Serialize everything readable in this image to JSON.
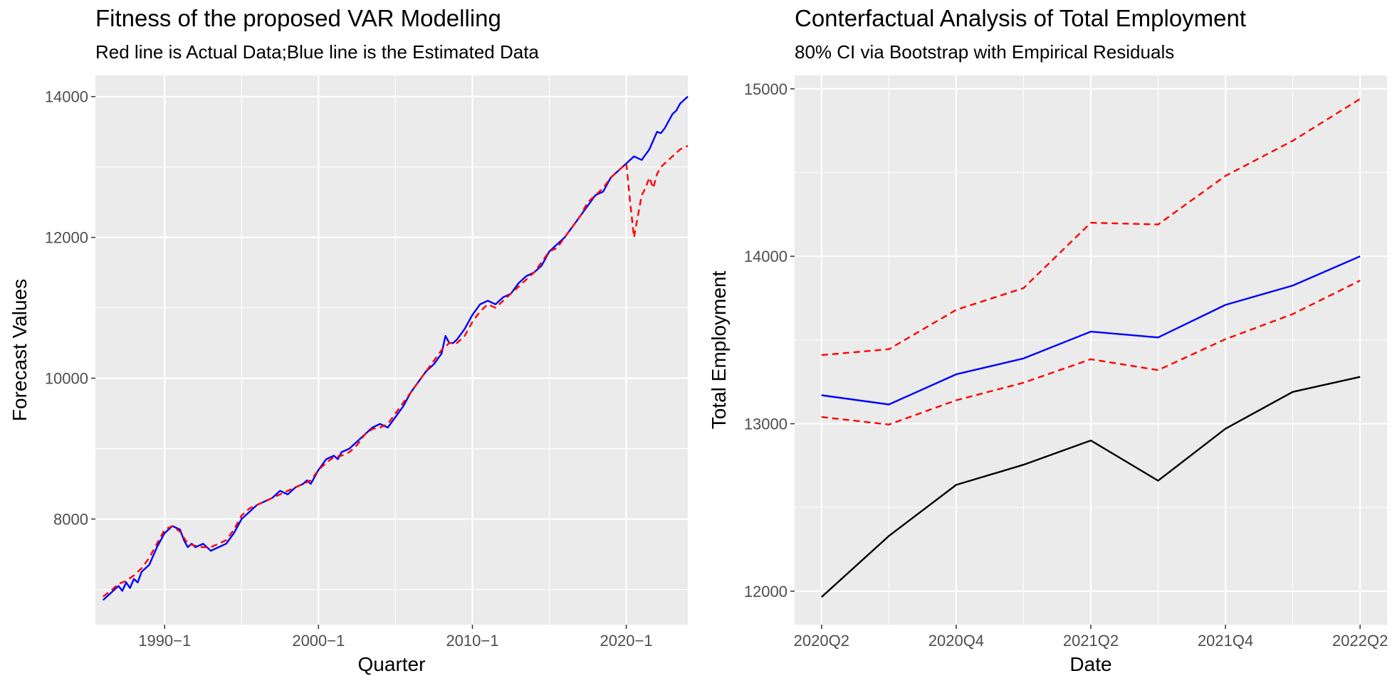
{
  "colors": {
    "panel_bg": "#EBEBEB",
    "grid": "#FFFFFF",
    "estimated": "#0000FF",
    "actual": "#FF0000",
    "counterfactual": "#000000",
    "tick_text": "#4D4D4D"
  },
  "chart_data": [
    {
      "type": "line",
      "title": "Fitness of the proposed VAR Modelling",
      "subtitle": "Red line is Actual Data;Blue line is the Estimated Data",
      "xlabel": "Quarter",
      "ylabel": "Forecast Values",
      "x_ticks": [
        "1990−1",
        "2000−1",
        "2010−1",
        "2020−1"
      ],
      "x_tick_positions": [
        1990.0,
        2000.0,
        2010.0,
        2020.0
      ],
      "xlim": [
        1985.5,
        2024.0
      ],
      "y_ticks": [
        "8000",
        "10000",
        "12000",
        "14000"
      ],
      "y_tick_values": [
        8000,
        10000,
        12000,
        14000
      ],
      "ylim": [
        6500,
        14300
      ],
      "grid": true,
      "legend": "none",
      "series": [
        {
          "color": "#0000FF",
          "style": "solid",
          "x": [
            1986.0,
            1986.5,
            1987.0,
            1987.25,
            1987.5,
            1987.75,
            1988.0,
            1988.25,
            1988.5,
            1989.0,
            1989.5,
            1990.0,
            1990.5,
            1991.0,
            1991.25,
            1991.5,
            1991.75,
            1992.0,
            1992.5,
            1993.0,
            1993.5,
            1994.0,
            1994.5,
            1995.0,
            1995.5,
            1996.0,
            1996.5,
            1997.0,
            1997.5,
            1998.0,
            1998.5,
            1999.0,
            1999.25,
            1999.5,
            2000.0,
            2000.5,
            2001.0,
            2001.25,
            2001.5,
            2002.0,
            2002.5,
            2003.0,
            2003.5,
            2004.0,
            2004.5,
            2005.0,
            2005.5,
            2006.0,
            2006.5,
            2007.0,
            2007.5,
            2008.0,
            2008.25,
            2008.5,
            2008.75,
            2009.0,
            2009.5,
            2010.0,
            2010.5,
            2011.0,
            2011.5,
            2012.0,
            2012.5,
            2013.0,
            2013.5,
            2014.0,
            2014.5,
            2015.0,
            2015.5,
            2016.0,
            2016.5,
            2017.0,
            2017.5,
            2018.0,
            2018.5,
            2019.0,
            2019.5,
            2020.0,
            2020.5,
            2021.0,
            2021.5,
            2022.0,
            2022.25,
            2022.5,
            2022.75,
            2023.0,
            2023.25,
            2023.5,
            2023.75,
            2024.0
          ],
          "y": [
            6850,
            6950,
            7050,
            6980,
            7100,
            7020,
            7150,
            7100,
            7250,
            7350,
            7600,
            7800,
            7900,
            7850,
            7700,
            7600,
            7650,
            7600,
            7650,
            7550,
            7600,
            7650,
            7800,
            8000,
            8100,
            8200,
            8250,
            8300,
            8400,
            8350,
            8450,
            8500,
            8550,
            8500,
            8700,
            8850,
            8900,
            8850,
            8950,
            9000,
            9100,
            9200,
            9300,
            9350,
            9300,
            9450,
            9600,
            9800,
            9950,
            10100,
            10200,
            10350,
            10600,
            10500,
            10500,
            10550,
            10700,
            10900,
            11050,
            11100,
            11050,
            11150,
            11200,
            11350,
            11450,
            11500,
            11600,
            11800,
            11900,
            12000,
            12150,
            12300,
            12450,
            12600,
            12650,
            12850,
            12950,
            13050,
            13150,
            13100,
            13250,
            13500,
            13480,
            13550,
            13650,
            13750,
            13800,
            13900,
            13950,
            14000
          ]
        },
        {
          "color": "#FF0000",
          "style": "dashed",
          "x": [
            1986.0,
            1986.5,
            1987.0,
            1987.5,
            1988.0,
            1988.5,
            1989.0,
            1989.5,
            1990.0,
            1990.5,
            1991.0,
            1991.5,
            1992.0,
            1992.5,
            1993.0,
            1993.5,
            1994.0,
            1994.5,
            1995.0,
            1995.5,
            1996.0,
            1996.5,
            1997.0,
            1997.5,
            1998.0,
            1998.5,
            1999.0,
            1999.5,
            2000.0,
            2000.5,
            2001.0,
            2001.5,
            2002.0,
            2002.5,
            2003.0,
            2003.5,
            2004.0,
            2004.5,
            2005.0,
            2005.5,
            2006.0,
            2006.5,
            2007.0,
            2007.5,
            2008.0,
            2008.5,
            2009.0,
            2009.5,
            2010.0,
            2010.5,
            2011.0,
            2011.5,
            2012.0,
            2012.5,
            2013.0,
            2013.5,
            2014.0,
            2014.5,
            2015.0,
            2015.5,
            2016.0,
            2016.5,
            2017.0,
            2017.5,
            2018.0,
            2018.5,
            2019.0,
            2019.5,
            2020.0,
            2020.25,
            2020.5,
            2020.75,
            2021.0,
            2021.25,
            2021.5,
            2021.75,
            2022.0,
            2022.25,
            2022.5,
            2022.75,
            2023.0,
            2023.25,
            2023.5,
            2023.75,
            2024.0
          ],
          "y": [
            6900,
            6980,
            7080,
            7120,
            7200,
            7300,
            7450,
            7650,
            7850,
            7900,
            7820,
            7650,
            7620,
            7600,
            7600,
            7650,
            7700,
            7850,
            8050,
            8150,
            8200,
            8250,
            8300,
            8350,
            8400,
            8450,
            8500,
            8550,
            8700,
            8800,
            8880,
            8900,
            8950,
            9050,
            9200,
            9280,
            9300,
            9350,
            9500,
            9650,
            9800,
            9950,
            10100,
            10250,
            10400,
            10500,
            10500,
            10600,
            10800,
            10950,
            11050,
            11000,
            11100,
            11200,
            11300,
            11400,
            11500,
            11650,
            11800,
            11850,
            12000,
            12150,
            12300,
            12500,
            12600,
            12700,
            12850,
            12950,
            13050,
            12500,
            12000,
            12300,
            12600,
            12700,
            12850,
            12700,
            12900,
            13000,
            13050,
            13100,
            13150,
            13200,
            13250,
            13275,
            13300
          ]
        }
      ]
    },
    {
      "type": "line",
      "title": "Conterfactual Analysis of Total Employment",
      "subtitle": "80% CI via Bootstrap with Empirical Residuals",
      "xlabel": "Date",
      "ylabel": "Total Employment",
      "x_ticks": [
        "2020Q2",
        "2020Q4",
        "2021Q2",
        "2021Q4",
        "2022Q2"
      ],
      "x_tick_positions": [
        0,
        2,
        4,
        6,
        8
      ],
      "xlim": [
        -0.4,
        8.4
      ],
      "y_ticks": [
        "12000",
        "13000",
        "14000",
        "15000"
      ],
      "y_tick_values": [
        12000,
        13000,
        14000,
        15000
      ],
      "ylim": [
        11800,
        15080
      ],
      "grid": true,
      "legend": "none",
      "series": [
        {
          "color": "#0000FF",
          "style": "solid",
          "x": [
            0,
            1,
            2,
            3,
            4,
            5,
            6,
            7,
            8
          ],
          "y": [
            13170,
            13115,
            13295,
            13390,
            13550,
            13515,
            13710,
            13825,
            14000
          ]
        },
        {
          "color": "#FF0000",
          "style": "dashed",
          "x": [
            0,
            1,
            2,
            3,
            4,
            5,
            6,
            7,
            8
          ],
          "y": [
            13410,
            13445,
            13680,
            13810,
            14200,
            14190,
            14480,
            14690,
            14940
          ]
        },
        {
          "color": "#FF0000",
          "style": "dashed",
          "x": [
            0,
            1,
            2,
            3,
            4,
            5,
            6,
            7,
            8
          ],
          "y": [
            13040,
            12995,
            13140,
            13245,
            13385,
            13320,
            13505,
            13655,
            13855
          ]
        },
        {
          "color": "#000000",
          "style": "solid",
          "x": [
            0,
            1,
            2,
            3,
            4,
            5,
            6,
            7,
            8
          ],
          "y": [
            11965,
            12330,
            12635,
            12755,
            12900,
            12660,
            12970,
            13190,
            13280
          ]
        }
      ]
    }
  ]
}
